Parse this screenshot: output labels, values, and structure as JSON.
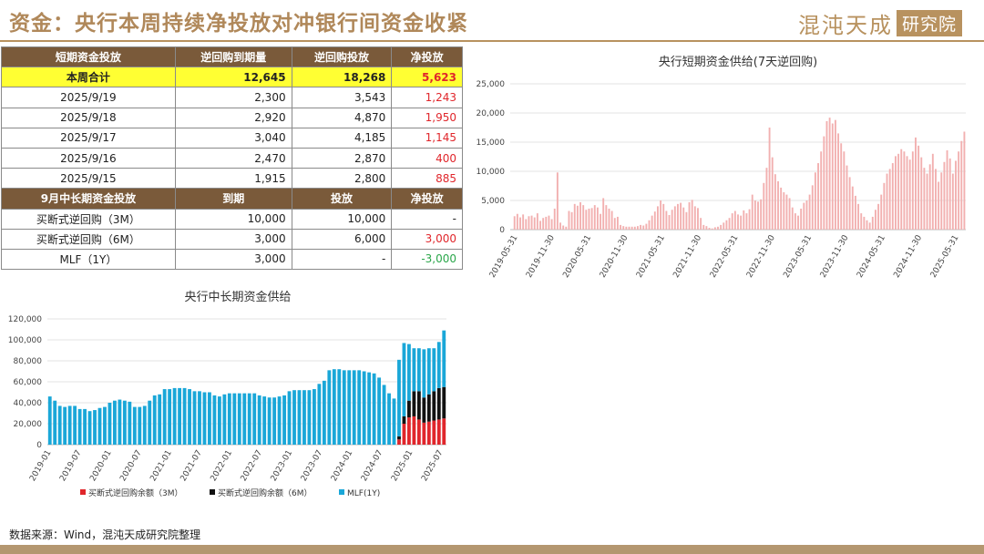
{
  "page": {
    "title": "资金：央行本周持续净投放对冲银行间资金收紧",
    "logo_text": "混沌天成",
    "logo_box": "研究院",
    "source": "数据来源：Wind，混沌天成研究院整理"
  },
  "table": {
    "header1": [
      "短期资金投放",
      "逆回购到期量",
      "逆回购投放",
      "净投放"
    ],
    "summary": {
      "label": "本周合计",
      "maturity": "12,645",
      "injection": "18,268",
      "net": "5,623"
    },
    "rows1": [
      {
        "date": "2025/9/19",
        "maturity": "2,300",
        "injection": "3,543",
        "net": "1,243"
      },
      {
        "date": "2025/9/18",
        "maturity": "2,920",
        "injection": "4,870",
        "net": "1,950"
      },
      {
        "date": "2025/9/17",
        "maturity": "3,040",
        "injection": "4,185",
        "net": "1,145"
      },
      {
        "date": "2025/9/16",
        "maturity": "2,470",
        "injection": "2,870",
        "net": "400"
      },
      {
        "date": "2025/9/15",
        "maturity": "1,915",
        "injection": "2,800",
        "net": "885"
      }
    ],
    "header2": [
      "9月中长期资金投放",
      "到期",
      "投放",
      "净投放"
    ],
    "rows2": [
      {
        "label": "买断式逆回购（3M）",
        "maturity": "10,000",
        "injection": "10,000",
        "net": "-"
      },
      {
        "label": "买断式逆回购（6M）",
        "maturity": "3,000",
        "injection": "6,000",
        "net": "3,000"
      },
      {
        "label": "MLF（1Y）",
        "maturity": "3,000",
        "injection": "-",
        "net": "-3,000"
      }
    ]
  },
  "chart_data": [
    {
      "type": "bar",
      "title": "央行短期资金供给(7天逆回购)",
      "ylim": [
        0,
        25000
      ],
      "yticks": [
        "0",
        "5,000",
        "10,000",
        "15,000",
        "20,000",
        "25,000"
      ],
      "xticks": [
        "2019-05-31",
        "2019-11-30",
        "2020-05-31",
        "2020-11-30",
        "2021-05-31",
        "2021-11-30",
        "2022-05-31",
        "2022-11-30",
        "2023-05-31",
        "2023-11-30",
        "2024-05-31",
        "2024-11-30",
        "2025-05-31"
      ],
      "series": [
        {
          "color": "#f2b0b0",
          "values": [
            0,
            2300,
            2700,
            2100,
            2600,
            1800,
            2300,
            2400,
            2100,
            2800,
            1500,
            2000,
            2200,
            2400,
            1800,
            3600,
            9800,
            1200,
            700,
            500,
            3200,
            3000,
            4400,
            4100,
            4700,
            4200,
            3400,
            3600,
            3700,
            4200,
            3800,
            2700,
            5400,
            4200,
            3600,
            3200,
            2000,
            2200,
            800,
            600,
            500,
            500,
            500,
            500,
            600,
            800,
            700,
            1000,
            1600,
            2400,
            3100,
            4000,
            5000,
            4400,
            3200,
            2500,
            3400,
            4000,
            4400,
            4600,
            3800,
            3000,
            4700,
            5100,
            4000,
            3700,
            2000,
            800,
            600,
            300,
            200,
            400,
            500,
            800,
            1200,
            1600,
            2000,
            2800,
            3200,
            2600,
            2400,
            3300,
            2800,
            3500,
            6000,
            5000,
            4800,
            5200,
            8000,
            10600,
            17500,
            12400,
            9500,
            8300,
            7200,
            6400,
            6000,
            5400,
            3800,
            2800,
            2400,
            3600,
            4600,
            5000,
            6000,
            7600,
            9800,
            11400,
            13400,
            16000,
            18600,
            19200,
            18200,
            18800,
            16500,
            14800,
            13400,
            11000,
            9000,
            7400,
            5800,
            4400,
            2800,
            2200,
            1600,
            1200,
            2200,
            3400,
            4400,
            6000,
            8000,
            9600,
            10400,
            11400,
            12600,
            13000,
            13800,
            13400,
            12600,
            12000,
            13400,
            15800,
            14400,
            12400,
            10600,
            9600,
            11200,
            13000,
            10400,
            8200,
            9800,
            11600,
            13600,
            12200,
            9600,
            11800,
            13400,
            15200,
            16800
          ]
        }
      ]
    },
    {
      "type": "bar",
      "stacked": true,
      "title": "央行中长期资金供给",
      "ylim": [
        0,
        120000
      ],
      "yticks": [
        "0",
        "20,000",
        "40,000",
        "60,000",
        "80,000",
        "100,000",
        "120,000"
      ],
      "xticks": [
        "2019-01",
        "2019-07",
        "2020-01",
        "2020-07",
        "2021-01",
        "2021-07",
        "2022-01",
        "2022-07",
        "2023-01",
        "2023-07",
        "2024-01",
        "2024-07",
        "2025-01",
        "2025-07"
      ],
      "legend_position": "bottom",
      "series": [
        {
          "name": "买断式逆回购余额（3M）",
          "color": "#e0262b",
          "values": [
            0,
            0,
            0,
            0,
            0,
            0,
            0,
            0,
            0,
            0,
            0,
            0,
            0,
            0,
            0,
            0,
            0,
            0,
            0,
            0,
            0,
            0,
            0,
            0,
            0,
            0,
            0,
            0,
            0,
            0,
            0,
            0,
            0,
            0,
            0,
            0,
            0,
            0,
            0,
            0,
            0,
            0,
            0,
            0,
            0,
            0,
            0,
            0,
            0,
            0,
            0,
            0,
            0,
            0,
            0,
            0,
            0,
            0,
            0,
            0,
            0,
            0,
            0,
            0,
            0,
            0,
            0,
            0,
            0,
            0,
            5000,
            20000,
            26000,
            27000,
            24000,
            21000,
            22000,
            23000,
            24000,
            25000
          ]
        },
        {
          "name": "买断式逆回购余额（6M）",
          "color": "#111111",
          "values": [
            0,
            0,
            0,
            0,
            0,
            0,
            0,
            0,
            0,
            0,
            0,
            0,
            0,
            0,
            0,
            0,
            0,
            0,
            0,
            0,
            0,
            0,
            0,
            0,
            0,
            0,
            0,
            0,
            0,
            0,
            0,
            0,
            0,
            0,
            0,
            0,
            0,
            0,
            0,
            0,
            0,
            0,
            0,
            0,
            0,
            0,
            0,
            0,
            0,
            0,
            0,
            0,
            0,
            0,
            0,
            0,
            0,
            0,
            0,
            0,
            0,
            0,
            0,
            0,
            0,
            0,
            0,
            0,
            0,
            0,
            3000,
            7000,
            16000,
            24000,
            27000,
            24000,
            26000,
            28000,
            30000,
            30000
          ]
        },
        {
          "name": "MLF(1Y)",
          "color": "#1aa7d8",
          "values": [
            46000,
            42000,
            37000,
            36000,
            37000,
            37000,
            34000,
            34000,
            32000,
            33000,
            35000,
            36000,
            40000,
            42000,
            43000,
            42000,
            41000,
            36000,
            36000,
            37000,
            42000,
            47000,
            48000,
            53000,
            53000,
            54000,
            54000,
            54000,
            53000,
            51000,
            51000,
            50000,
            50000,
            47000,
            46000,
            48000,
            49000,
            49000,
            49000,
            49000,
            49000,
            49000,
            47000,
            46000,
            45000,
            45000,
            46000,
            47000,
            51000,
            52000,
            52000,
            52000,
            52000,
            53000,
            58000,
            61000,
            71000,
            72000,
            72000,
            71000,
            71000,
            71000,
            71000,
            70000,
            69000,
            68000,
            64000,
            57000,
            49000,
            44000,
            73000,
            70000,
            54000,
            41000,
            41000,
            46000,
            44000,
            41000,
            44000,
            54000
          ]
        }
      ]
    }
  ]
}
